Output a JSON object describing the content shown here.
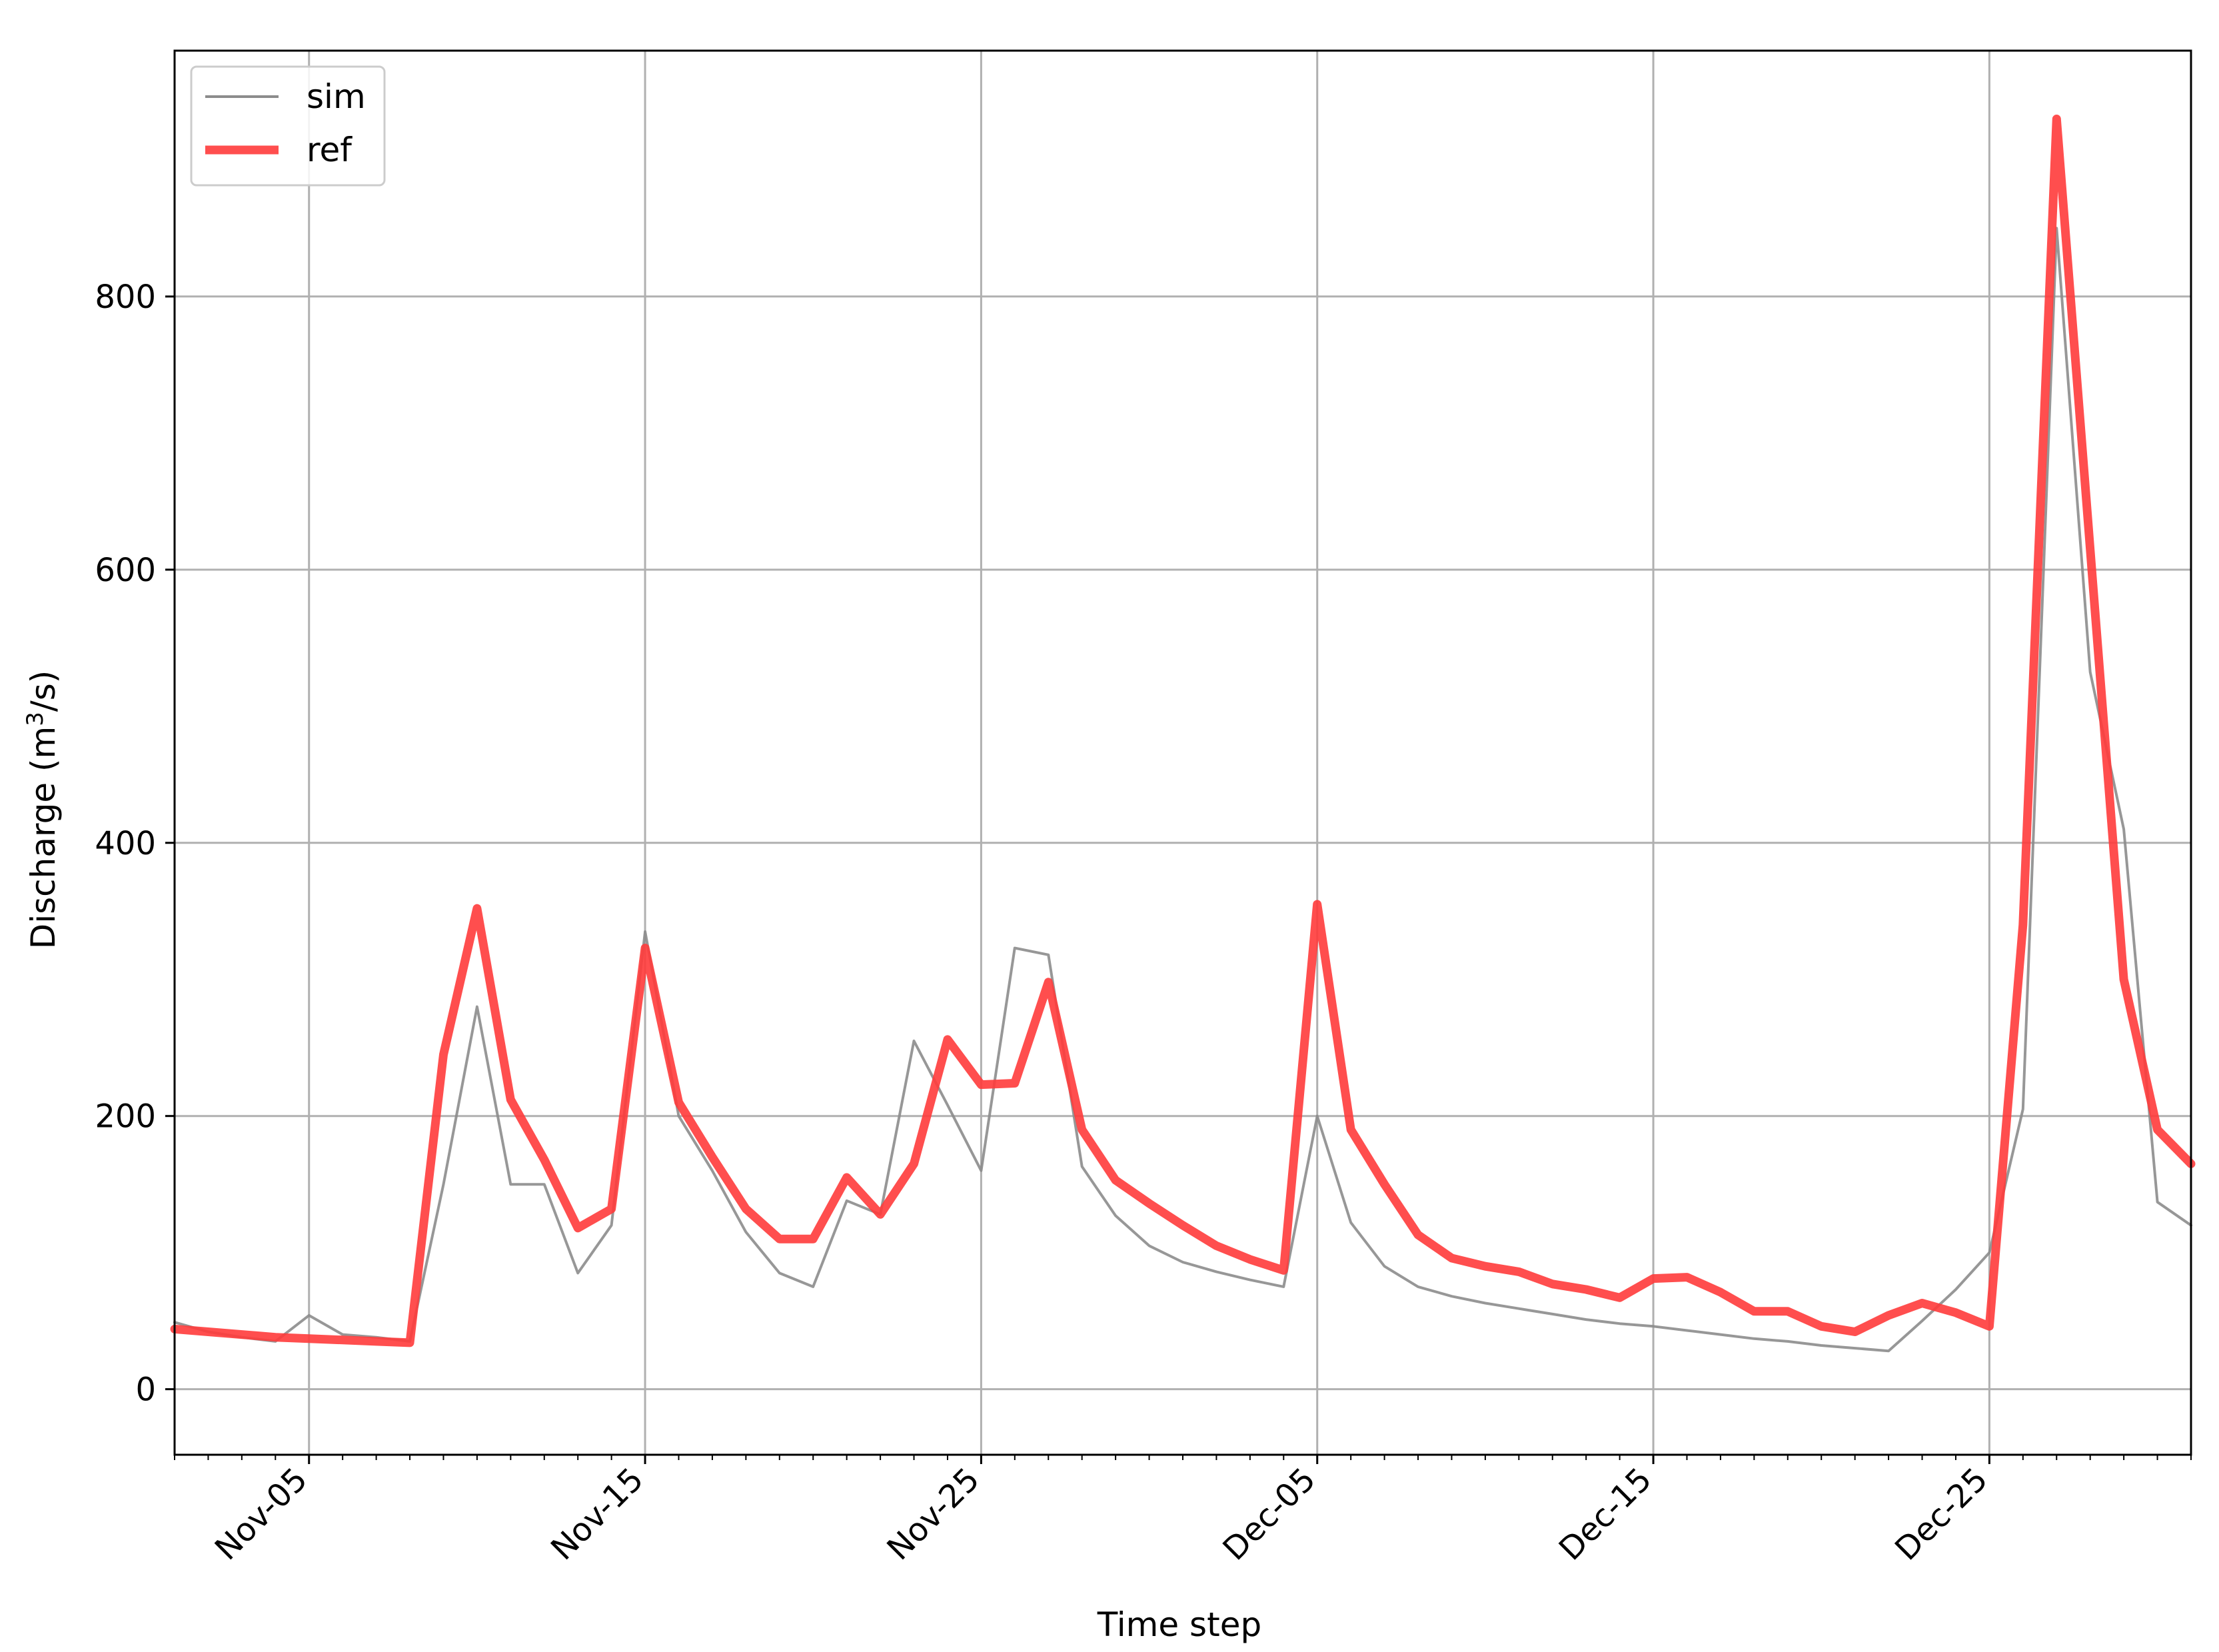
{
  "chart_data": {
    "type": "line",
    "title": "",
    "xlabel": "Time step",
    "ylabel_main": "Discharge (m",
    "ylabel_sup": "3",
    "ylabel_tail": "/s)",
    "ylim": [
      -48,
      980
    ],
    "xlim": [
      "2000-11-01",
      "2000-12-31"
    ],
    "y_ticks": [
      0,
      200,
      400,
      600,
      800
    ],
    "x_ticks": [
      {
        "label": "Nov-05",
        "date": "2000-11-05"
      },
      {
        "label": "Nov-15",
        "date": "2000-11-15"
      },
      {
        "label": "Nov-25",
        "date": "2000-11-25"
      },
      {
        "label": "Dec-05",
        "date": "2000-12-05"
      },
      {
        "label": "Dec-15",
        "date": "2000-12-15"
      },
      {
        "label": "Dec-25",
        "date": "2000-12-25"
      }
    ],
    "grid": true,
    "legend_position": "top-left",
    "colors": {
      "sim": "#8c8c8c",
      "ref": "#ff3b3b",
      "grid": "#b0b0b0"
    },
    "series": [
      {
        "name": "sim",
        "x": [
          "2000-11-01",
          "2000-11-02",
          "2000-11-03",
          "2000-11-04",
          "2000-11-05",
          "2000-11-06",
          "2000-11-07",
          "2000-11-08",
          "2000-11-09",
          "2000-11-10",
          "2000-11-11",
          "2000-11-12",
          "2000-11-13",
          "2000-11-14",
          "2000-11-15",
          "2000-11-16",
          "2000-11-17",
          "2000-11-18",
          "2000-11-19",
          "2000-11-20",
          "2000-11-21",
          "2000-11-22",
          "2000-11-23",
          "2000-11-24",
          "2000-11-25",
          "2000-11-26",
          "2000-11-27",
          "2000-11-28",
          "2000-11-29",
          "2000-11-30",
          "2000-12-01",
          "2000-12-02",
          "2000-12-03",
          "2000-12-04",
          "2000-12-05",
          "2000-12-06",
          "2000-12-07",
          "2000-12-08",
          "2000-12-09",
          "2000-12-10",
          "2000-12-11",
          "2000-12-12",
          "2000-12-13",
          "2000-12-14",
          "2000-12-15",
          "2000-12-16",
          "2000-12-17",
          "2000-12-18",
          "2000-12-19",
          "2000-12-20",
          "2000-12-21",
          "2000-12-22",
          "2000-12-23",
          "2000-12-24",
          "2000-12-25",
          "2000-12-26",
          "2000-12-27",
          "2000-12-28",
          "2000-12-29",
          "2000-12-30",
          "2000-12-31"
        ],
        "values": [
          49,
          42,
          38,
          35,
          54,
          40,
          38,
          35,
          150,
          280,
          150,
          150,
          85,
          120,
          335,
          200,
          160,
          115,
          85,
          75,
          138,
          128,
          255,
          208,
          160,
          323,
          318,
          163,
          127,
          105,
          93,
          86,
          80,
          75,
          200,
          122,
          90,
          75,
          68,
          63,
          59,
          55,
          51,
          48,
          46,
          43,
          40,
          37,
          35,
          32,
          30,
          28,
          50,
          73,
          100,
          205,
          850,
          525,
          410,
          137,
          120
        ]
      },
      {
        "name": "ref",
        "x": [
          "2000-11-01",
          "2000-11-02",
          "2000-11-03",
          "2000-11-04",
          "2000-11-05",
          "2000-11-06",
          "2000-11-07",
          "2000-11-08",
          "2000-11-09",
          "2000-11-10",
          "2000-11-11",
          "2000-11-12",
          "2000-11-13",
          "2000-11-14",
          "2000-11-15",
          "2000-11-16",
          "2000-11-17",
          "2000-11-18",
          "2000-11-19",
          "2000-11-20",
          "2000-11-21",
          "2000-11-22",
          "2000-11-23",
          "2000-11-24",
          "2000-11-25",
          "2000-11-26",
          "2000-11-27",
          "2000-11-28",
          "2000-11-29",
          "2000-11-30",
          "2000-12-01",
          "2000-12-02",
          "2000-12-03",
          "2000-12-04",
          "2000-12-05",
          "2000-12-06",
          "2000-12-07",
          "2000-12-08",
          "2000-12-09",
          "2000-12-10",
          "2000-12-11",
          "2000-12-12",
          "2000-12-13",
          "2000-12-14",
          "2000-12-15",
          "2000-12-16",
          "2000-12-17",
          "2000-12-18",
          "2000-12-19",
          "2000-12-20",
          "2000-12-21",
          "2000-12-22",
          "2000-12-23",
          "2000-12-24",
          "2000-12-25",
          "2000-12-26",
          "2000-12-27",
          "2000-12-28",
          "2000-12-29",
          "2000-12-30",
          "2000-12-31"
        ],
        "values": [
          44,
          42,
          40,
          38,
          37,
          36,
          35,
          34,
          245,
          352,
          212,
          168,
          118,
          132,
          323,
          210,
          170,
          132,
          110,
          110,
          155,
          128,
          165,
          256,
          223,
          224,
          298,
          190,
          153,
          136,
          120,
          105,
          95,
          87,
          355,
          190,
          150,
          113,
          96,
          90,
          86,
          77,
          73,
          67,
          81,
          82,
          71,
          57,
          57,
          46,
          42,
          54,
          63,
          56,
          46,
          340,
          930,
          615,
          300,
          190,
          165
        ]
      }
    ]
  }
}
